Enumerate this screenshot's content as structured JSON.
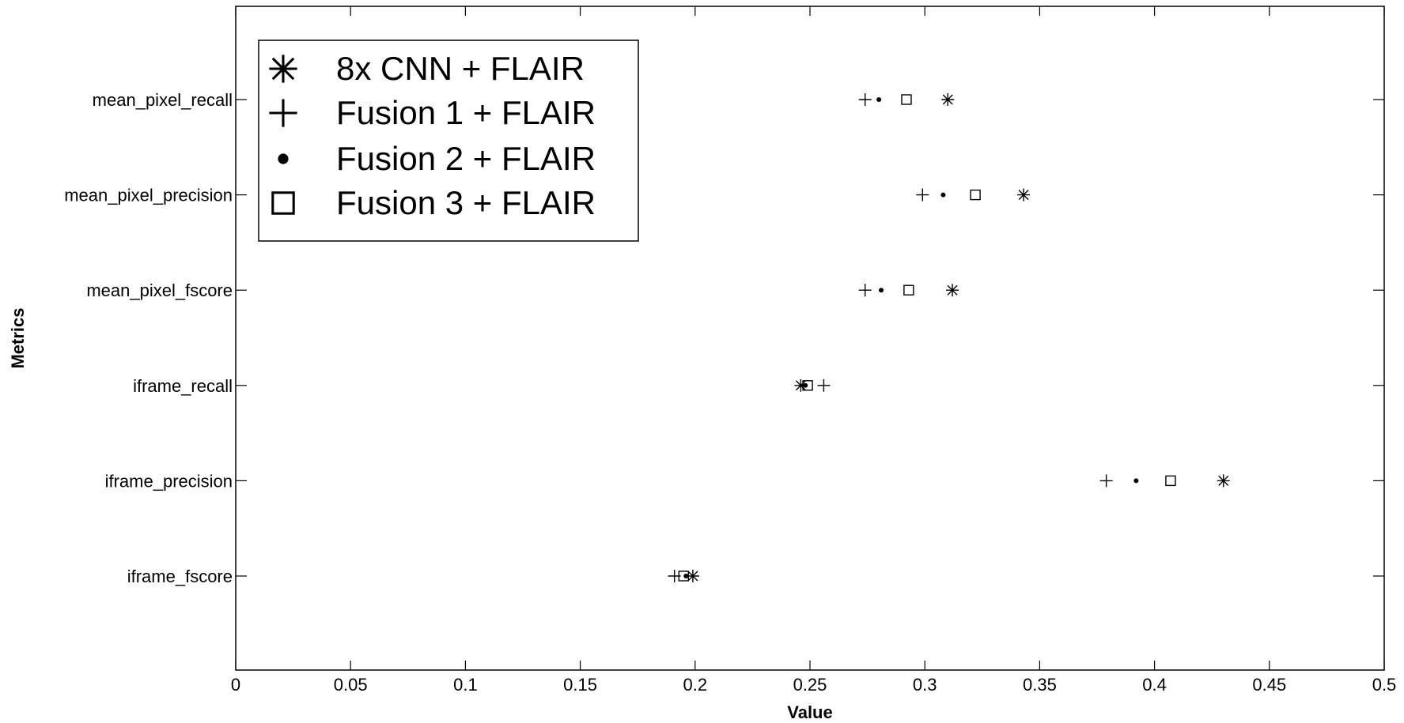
{
  "chart_data": {
    "type": "scatter",
    "xlabel": "Value",
    "ylabel": "Metrics",
    "xlim": [
      0,
      0.5
    ],
    "xticks": [
      0,
      0.05,
      0.1,
      0.15,
      0.2,
      0.25,
      0.3,
      0.35,
      0.4,
      0.45,
      0.5
    ],
    "xtick_labels": [
      "0",
      "0.05",
      "0.1",
      "0.15",
      "0.2",
      "0.25",
      "0.3",
      "0.35",
      "0.4",
      "0.45",
      "0.5"
    ],
    "categories": [
      "mean_pixel_recall",
      "mean_pixel_precision",
      "mean_pixel_fscore",
      "iframe_recall",
      "iframe_precision",
      "iframe_fscore"
    ],
    "legend_position": "top-left",
    "grid": false,
    "series": [
      {
        "name": "8x CNN + FLAIR",
        "marker": "asterisk",
        "values": [
          0.31,
          0.343,
          0.312,
          0.246,
          0.43,
          0.199
        ]
      },
      {
        "name": "Fusion 1 + FLAIR",
        "marker": "plus",
        "values": [
          0.274,
          0.299,
          0.274,
          0.256,
          0.379,
          0.191
        ]
      },
      {
        "name": "Fusion 2 + FLAIR",
        "marker": "dot",
        "values": [
          0.28,
          0.308,
          0.281,
          0.248,
          0.392,
          0.196
        ]
      },
      {
        "name": "Fusion 3 + FLAIR",
        "marker": "square",
        "values": [
          0.292,
          0.322,
          0.293,
          0.249,
          0.407,
          0.195
        ]
      }
    ]
  }
}
